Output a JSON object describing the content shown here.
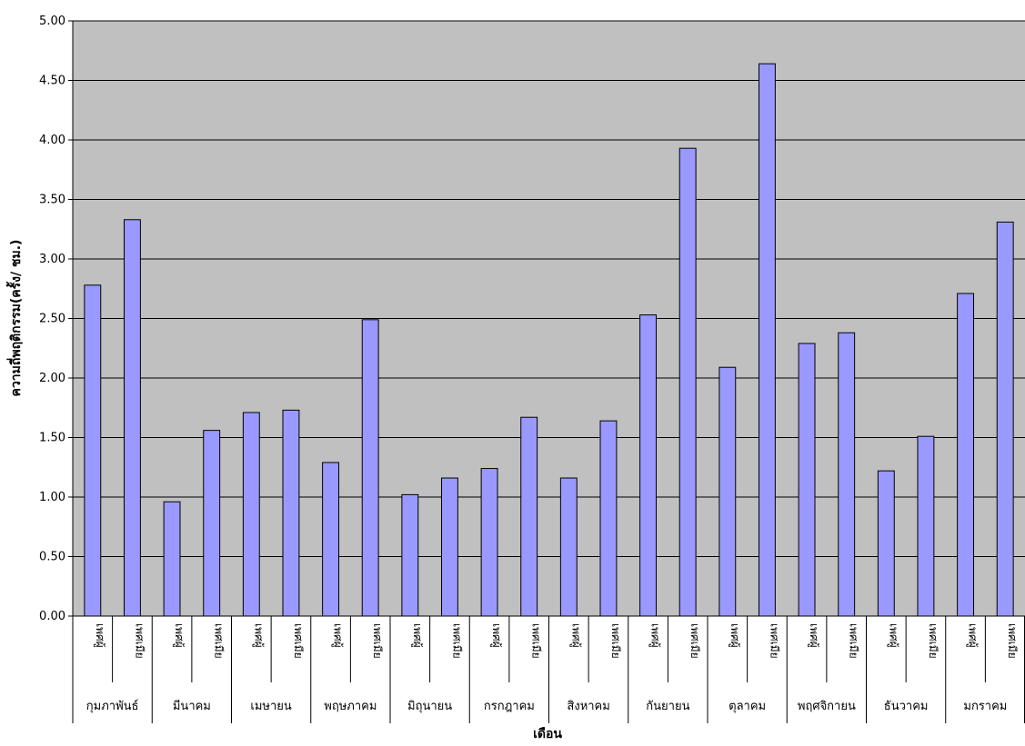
{
  "chart_data": {
    "type": "bar",
    "title": "",
    "xlabel": "เดือน",
    "ylabel": "ความถี่พฤติกรรม(ครั้ง/ ชม.)",
    "ylim": [
      0,
      5
    ],
    "y_ticks": [
      "0.00",
      "0.50",
      "1.00",
      "1.50",
      "2.00",
      "2.50",
      "3.00",
      "3.50",
      "4.00",
      "4.50",
      "5.00"
    ],
    "grid": true,
    "groups": [
      {
        "month": "กุมภาพันธ์",
        "bars": [
          {
            "sex": "เพศผู้",
            "value": 2.78
          },
          {
            "sex": "เพศเมีย",
            "value": 3.33
          }
        ]
      },
      {
        "month": "มีนาคม",
        "bars": [
          {
            "sex": "เพศผู้",
            "value": 0.96
          },
          {
            "sex": "เพศเมีย",
            "value": 1.56
          }
        ]
      },
      {
        "month": "เมษายน",
        "bars": [
          {
            "sex": "เพศผู้",
            "value": 1.71
          },
          {
            "sex": "เพศเมีย",
            "value": 1.73
          }
        ]
      },
      {
        "month": "พฤษภาคม",
        "bars": [
          {
            "sex": "เพศผู้",
            "value": 1.29
          },
          {
            "sex": "เพศเมีย",
            "value": 2.49
          }
        ]
      },
      {
        "month": "มิถุนายน",
        "bars": [
          {
            "sex": "เพศผู้",
            "value": 1.02
          },
          {
            "sex": "เพศเมีย",
            "value": 1.16
          }
        ]
      },
      {
        "month": "กรกฎาคม",
        "bars": [
          {
            "sex": "เพศผู้",
            "value": 1.24
          },
          {
            "sex": "เพศเมีย",
            "value": 1.67
          }
        ]
      },
      {
        "month": "สิงหาคม",
        "bars": [
          {
            "sex": "เพศผู้",
            "value": 1.16
          },
          {
            "sex": "เพศเมีย",
            "value": 1.64
          }
        ]
      },
      {
        "month": "กันยายน",
        "bars": [
          {
            "sex": "เพศผู้",
            "value": 2.53
          },
          {
            "sex": "เพศเมีย",
            "value": 3.93
          }
        ]
      },
      {
        "month": "ตุลาคม",
        "bars": [
          {
            "sex": "เพศผู้",
            "value": 2.09
          },
          {
            "sex": "เพศเมีย",
            "value": 4.64
          }
        ]
      },
      {
        "month": "พฤศจิกายน",
        "bars": [
          {
            "sex": "เพศผู้",
            "value": 2.29
          },
          {
            "sex": "เพศเมีย",
            "value": 2.38
          }
        ]
      },
      {
        "month": "ธันวาคม",
        "bars": [
          {
            "sex": "เพศผู้",
            "value": 1.22
          },
          {
            "sex": "เพศเมีย",
            "value": 1.51
          }
        ]
      },
      {
        "month": "มกราคม",
        "bars": [
          {
            "sex": "เพศผู้",
            "value": 2.71
          },
          {
            "sex": "เพศเมีย",
            "value": 3.31
          }
        ]
      }
    ],
    "colors": {
      "plot_background": "#c0c0c0",
      "bar_fill": "#9999ff",
      "bar_stroke": "#000000",
      "gridline": "#000000"
    }
  }
}
